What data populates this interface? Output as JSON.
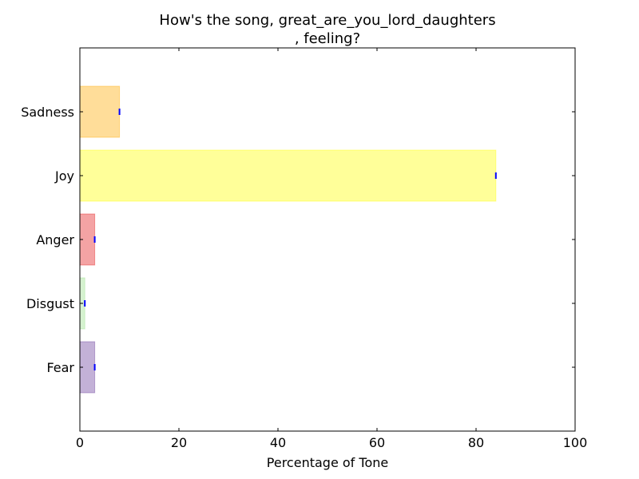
{
  "chart_data": {
    "type": "bar",
    "orientation": "horizontal",
    "title_lines": [
      "How's the song, great_are_you_lord_daughters",
      ", feeling?"
    ],
    "xlabel": "Percentage of Tone",
    "ylabel": "",
    "xlim": [
      0,
      100
    ],
    "xticks": [
      "0",
      "20",
      "40",
      "60",
      "80",
      "100"
    ],
    "categories": [
      "Fear",
      "Disgust",
      "Anger",
      "Joy",
      "Sadness"
    ],
    "values": [
      3,
      1,
      3,
      84,
      8
    ],
    "colors": [
      "#6a3d9a",
      "#98df8a",
      "#e31a1c",
      "#ffff00",
      "#ffaa00"
    ],
    "bar_opacity": 0.4,
    "error_marker_color": "#0000ff",
    "grid": false,
    "legend": "none"
  }
}
